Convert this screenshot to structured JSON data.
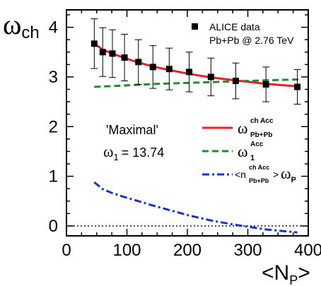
{
  "chart_data": {
    "type": "line",
    "xlabel_main": "<N",
    "xlabel_sub": "P",
    "xlabel_tail": ">",
    "ylabel_main": "ω",
    "ylabel_sub": "ch",
    "xlim": [
      0,
      400
    ],
    "ylim": [
      -0.2,
      4.35
    ],
    "xticks": [
      0,
      100,
      200,
      300,
      400
    ],
    "yticks": [
      0,
      1,
      2,
      3,
      4
    ],
    "reference_line": {
      "y": 0,
      "style": "dotted",
      "color": "#000000"
    },
    "legend_data": {
      "marker_label": "ALICE data",
      "sublabel": "Pb+Pb @ 2.76 TeV"
    },
    "annotation": {
      "model": "'Maximal'",
      "param_symbol": "ω",
      "param_sub": "1",
      "param_value": "= 13.74"
    },
    "series": [
      {
        "id": "alice",
        "kind": "points",
        "color": "#000000",
        "x": [
          46,
          60,
          76,
          96,
          119,
          143,
          170,
          203,
          239,
          280,
          330,
          382
        ],
        "y": [
          3.67,
          3.5,
          3.47,
          3.39,
          3.3,
          3.2,
          3.16,
          3.1,
          3.0,
          2.92,
          2.85,
          2.8
        ],
        "yerr": [
          0.5,
          0.49,
          0.48,
          0.47,
          0.45,
          0.43,
          0.42,
          0.4,
          0.38,
          0.36,
          0.35,
          0.35
        ]
      },
      {
        "id": "omega-ch-acc",
        "kind": "line",
        "style": "solid",
        "color": "#e8202a",
        "legend": {
          "sym": "ω",
          "sup": "ch Acc",
          "sub": "Pb+Pb"
        },
        "x": [
          46,
          60,
          76,
          96,
          119,
          143,
          170,
          203,
          239,
          280,
          330,
          382
        ],
        "y": [
          3.67,
          3.55,
          3.47,
          3.38,
          3.29,
          3.21,
          3.14,
          3.06,
          2.99,
          2.93,
          2.86,
          2.81
        ]
      },
      {
        "id": "omega1-acc",
        "kind": "line",
        "style": "dashed",
        "color": "#1e8c2e",
        "legend": {
          "sym": "ω",
          "sup": "Acc",
          "sub": "1"
        },
        "x": [
          46,
          100,
          150,
          200,
          250,
          300,
          350,
          385
        ],
        "y": [
          2.8,
          2.83,
          2.86,
          2.88,
          2.9,
          2.92,
          2.94,
          2.95
        ]
      },
      {
        "id": "n-omega-p",
        "kind": "line",
        "style": "dashdot",
        "color": "#1830d8",
        "legend": {
          "open": "<n",
          "sup": "ch Acc",
          "sub": "Pb+Pb",
          "close": ">",
          "sym": "ω",
          "sym_sub": "P"
        },
        "x": [
          46,
          60,
          76,
          96,
          119,
          143,
          170,
          203,
          239,
          280,
          330,
          382
        ],
        "y": [
          0.88,
          0.74,
          0.66,
          0.58,
          0.5,
          0.41,
          0.32,
          0.21,
          0.11,
          0.02,
          -0.07,
          -0.13
        ]
      }
    ]
  }
}
